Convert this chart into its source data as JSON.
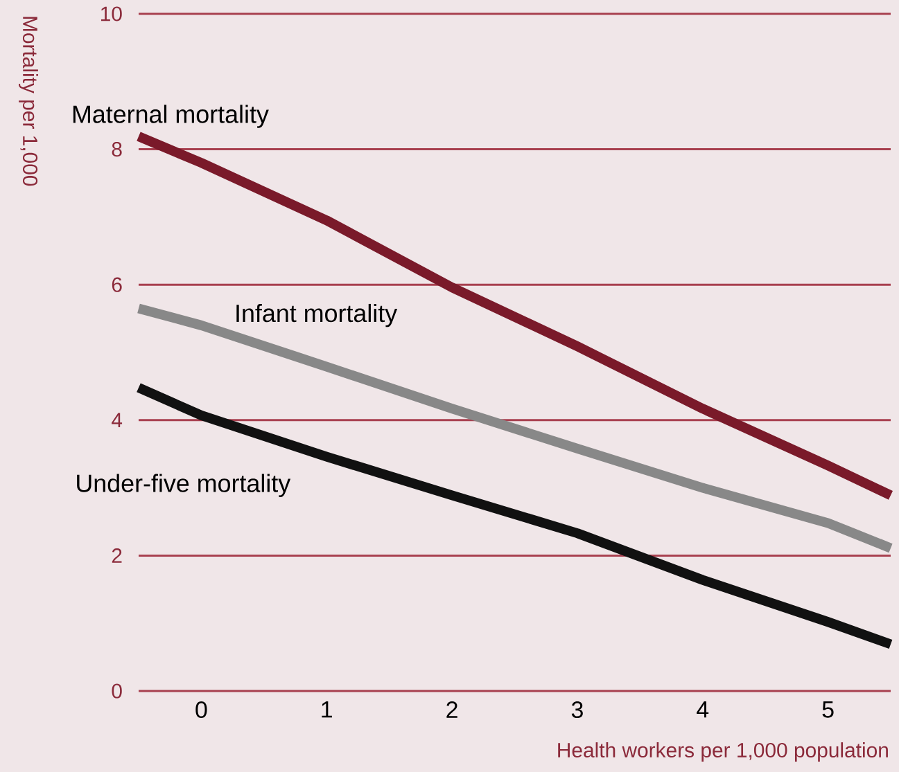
{
  "chart_data": {
    "type": "line",
    "xlabel": "Health workers per 1,000 population",
    "ylabel": "Mortality per 1,000",
    "x": [
      -0.5,
      0,
      1,
      2,
      3,
      4,
      5,
      5.5
    ],
    "series": [
      {
        "name": "Maternal mortality",
        "color": "#7a1a2a",
        "values": [
          8.19,
          7.8,
          6.95,
          5.96,
          5.09,
          4.17,
          3.33,
          2.89
        ]
      },
      {
        "name": "Infant mortality",
        "color": "#888888",
        "values": [
          5.65,
          5.4,
          4.79,
          4.17,
          3.58,
          3.0,
          2.48,
          2.11
        ]
      },
      {
        "name": "Under-five mortality",
        "color": "#111111",
        "values": [
          4.48,
          4.07,
          3.46,
          2.89,
          2.33,
          1.64,
          1.02,
          0.69
        ]
      }
    ],
    "xlim": [
      -0.5,
      5.5
    ],
    "ylim": [
      0,
      10
    ],
    "xticks": [
      0,
      1,
      2,
      3,
      4,
      5
    ],
    "yticks": [
      0,
      2,
      4,
      6,
      8,
      10
    ],
    "grid": "y"
  }
}
